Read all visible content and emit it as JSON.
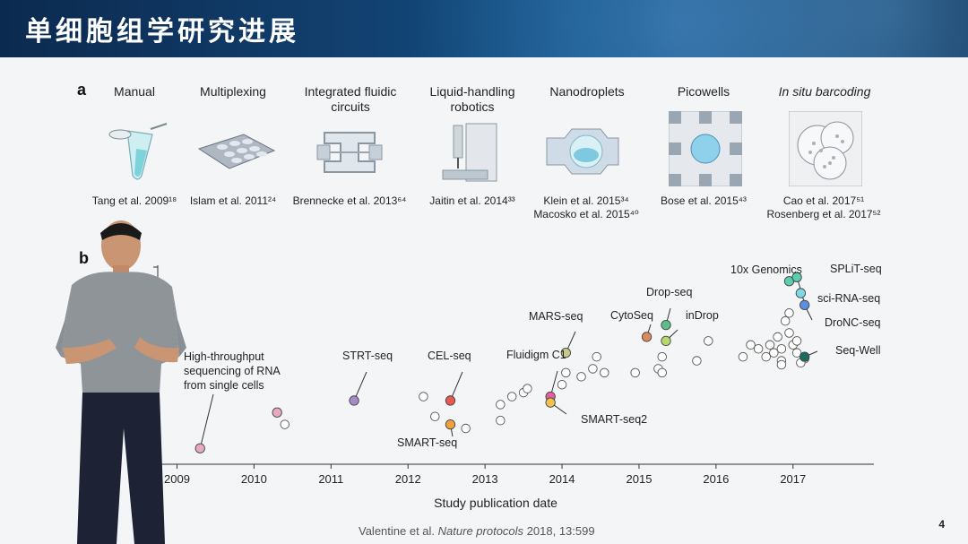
{
  "slide": {
    "title": "单细胞组学研究进展",
    "panel_a_letter": "a",
    "panel_b_letter": "b",
    "slide_number": "4",
    "citation_author": "Valentine et al.",
    "citation_journal": "Nature protocols",
    "citation_rest": "2018, 13:599"
  },
  "methods": [
    {
      "label": "Manual",
      "ref": "Tang et al. 2009¹⁸"
    },
    {
      "label": "Multiplexing",
      "ref": "Islam et al. 2011²⁴"
    },
    {
      "label": "Integrated fluidic circuits",
      "ref": "Brennecke et al. 2013⁶⁴"
    },
    {
      "label": "Liquid-handling robotics",
      "ref": "Jaitin et al. 2014³³"
    },
    {
      "label": "Nanodroplets",
      "ref": "Klein et al. 2015³⁴",
      "ref2": "Macosko et al. 2015⁴⁰"
    },
    {
      "label": "Picowells",
      "ref": "Bose et al. 2015⁴³"
    },
    {
      "label": "In situ barcoding",
      "ref": "Cao et al. 2017⁵¹",
      "ref2": "Rosenberg et al. 2017⁵²"
    }
  ],
  "chart_data": {
    "type": "scatter",
    "xlabel": "Study publication date",
    "ylabel": "",
    "xlim": [
      2008.75,
      2018.05
    ],
    "x_ticks": [
      "2009",
      "2010",
      "2011",
      "2012",
      "2013",
      "2014",
      "2015",
      "2016",
      "2017"
    ],
    "y_axis": "log-scale cell count (unlabeled)",
    "highlighted": [
      {
        "label": "High-throughput sequencing of RNA from single cells",
        "x": 2009.3,
        "y": 1.0,
        "color": "#e8a9c0"
      },
      {
        "label": "",
        "x": 2010.3,
        "y": 1.9,
        "color": "#e8a9c0"
      },
      {
        "label": "STRT-seq",
        "x": 2011.3,
        "y": 2.2,
        "color": "#a58cc6"
      },
      {
        "label": "CEL-seq",
        "x": 2012.55,
        "y": 2.2,
        "color": "#e8594f"
      },
      {
        "label": "SMART-seq",
        "x": 2012.55,
        "y": 1.6,
        "color": "#f0a23a"
      },
      {
        "label": "Fluidigm C1",
        "x": 2013.85,
        "y": 2.3,
        "color": "#e25fa0"
      },
      {
        "label": "SMART-seq2",
        "x": 2013.85,
        "y": 2.15,
        "color": "#f2c14e"
      },
      {
        "label": "MARS-seq",
        "x": 2014.05,
        "y": 3.4,
        "color": "#c7c98a"
      },
      {
        "label": "CytoSeq",
        "x": 2015.1,
        "y": 3.8,
        "color": "#d98a5a"
      },
      {
        "label": "Drop-seq",
        "x": 2015.35,
        "y": 4.1,
        "color": "#5cbf88"
      },
      {
        "label": "inDrop",
        "x": 2015.35,
        "y": 3.7,
        "color": "#b7d86a"
      },
      {
        "label": "10x Genomics",
        "x": 2016.95,
        "y": 5.2,
        "color": "#5ccdb0"
      },
      {
        "label": "SPLiT-seq",
        "x": 2017.05,
        "y": 5.3,
        "color": "#5ccdb0"
      },
      {
        "label": "sci-RNA-seq",
        "x": 2017.1,
        "y": 4.9,
        "color": "#7fd8e6"
      },
      {
        "label": "DroNC-seq",
        "x": 2017.15,
        "y": 4.6,
        "color": "#5a8fe0"
      },
      {
        "label": "Seq-Well",
        "x": 2017.15,
        "y": 3.3,
        "color": "#1f6a60"
      }
    ],
    "other_points": [
      [
        2010.4,
        1.6
      ],
      [
        2012.2,
        2.3
      ],
      [
        2012.35,
        1.8
      ],
      [
        2012.75,
        1.5
      ],
      [
        2013.2,
        2.1
      ],
      [
        2013.2,
        1.7
      ],
      [
        2013.35,
        2.3
      ],
      [
        2013.5,
        2.4
      ],
      [
        2013.55,
        2.5
      ],
      [
        2014.0,
        2.6
      ],
      [
        2014.05,
        2.9
      ],
      [
        2014.25,
        2.8
      ],
      [
        2014.4,
        3.0
      ],
      [
        2014.45,
        3.3
      ],
      [
        2014.55,
        2.9
      ],
      [
        2014.95,
        2.9
      ],
      [
        2015.25,
        3.0
      ],
      [
        2015.3,
        2.9
      ],
      [
        2015.3,
        3.3
      ],
      [
        2015.75,
        3.2
      ],
      [
        2015.9,
        3.7
      ],
      [
        2016.35,
        3.3
      ],
      [
        2016.45,
        3.6
      ],
      [
        2016.55,
        3.5
      ],
      [
        2016.65,
        3.3
      ],
      [
        2016.7,
        3.6
      ],
      [
        2016.75,
        3.4
      ],
      [
        2016.85,
        3.2
      ],
      [
        2016.85,
        3.5
      ],
      [
        2016.9,
        4.2
      ],
      [
        2016.95,
        4.4
      ],
      [
        2017.0,
        3.6
      ],
      [
        2017.05,
        3.4
      ],
      [
        2017.15,
        3.25
      ],
      [
        2016.8,
        3.8
      ],
      [
        2016.95,
        3.9
      ],
      [
        2017.05,
        3.7
      ],
      [
        2017.1,
        3.15
      ],
      [
        2016.85,
        3.1
      ]
    ]
  }
}
